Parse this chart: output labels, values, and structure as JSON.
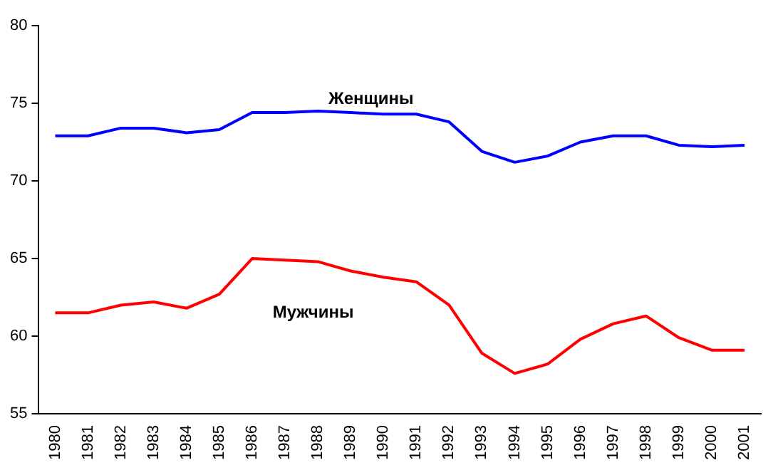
{
  "chart_data": {
    "type": "line",
    "categories": [
      "1980",
      "1981",
      "1982",
      "1983",
      "1984",
      "1985",
      "1986",
      "1987",
      "1988",
      "1989",
      "1990",
      "1991",
      "1992",
      "1993",
      "1994",
      "1995",
      "1996",
      "1997",
      "1998",
      "1999",
      "2000",
      "2001"
    ],
    "series": [
      {
        "name": "Женщины",
        "color": "#0000ff",
        "values": [
          72.9,
          72.9,
          73.4,
          73.4,
          73.1,
          73.3,
          74.4,
          74.4,
          74.5,
          74.4,
          74.3,
          74.3,
          73.8,
          71.9,
          71.2,
          71.6,
          72.5,
          72.9,
          72.9,
          72.3,
          72.2,
          72.3
        ]
      },
      {
        "name": "Мужчины",
        "color": "#ff0000",
        "values": [
          61.5,
          61.5,
          62.0,
          62.2,
          61.8,
          62.7,
          65.0,
          64.9,
          64.8,
          64.2,
          63.8,
          63.5,
          62.0,
          58.9,
          57.6,
          58.2,
          59.8,
          60.8,
          61.3,
          59.9,
          59.1,
          59.1
        ]
      }
    ],
    "ylim": [
      55,
      80
    ],
    "yticks": [
      55,
      60,
      65,
      70,
      75,
      80
    ],
    "grid": false,
    "legend": false,
    "marker": "none",
    "line_style": "solid"
  }
}
